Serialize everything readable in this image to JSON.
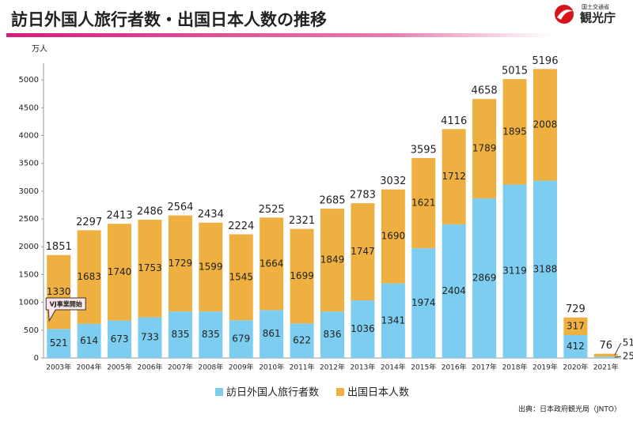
{
  "logo": {
    "ministry": "国土交通省",
    "agency": "観光庁"
  },
  "chart_data": {
    "type": "bar",
    "stacked": true,
    "title": "訪日外国人旅行者数・出国日本人数の推移",
    "y_unit": "万人",
    "categories": [
      "2003年",
      "2004年",
      "2005年",
      "2006年",
      "2007年",
      "2008年",
      "2009年",
      "2010年",
      "2011年",
      "2012年",
      "2013年",
      "2014年",
      "2015年",
      "2016年",
      "2017年",
      "2018年",
      "2019年",
      "2020年",
      "2021年"
    ],
    "series": [
      {
        "name": "訪日外国人旅行者数",
        "color": "#7dcdf0",
        "values": [
          521,
          614,
          673,
          733,
          835,
          835,
          679,
          861,
          622,
          836,
          1036,
          1341,
          1974,
          2404,
          2869,
          3119,
          3188,
          412,
          25
        ]
      },
      {
        "name": "出国日本人数",
        "color": "#efb042",
        "values": [
          1330,
          1683,
          1740,
          1753,
          1729,
          1599,
          1545,
          1664,
          1699,
          1849,
          1747,
          1690,
          1621,
          1712,
          1789,
          1895,
          2008,
          317,
          51
        ]
      }
    ],
    "totals": [
      1851,
      2297,
      2413,
      2486,
      2564,
      2434,
      2224,
      2525,
      2321,
      2685,
      2783,
      3032,
      3595,
      4116,
      4658,
      5015,
      5196,
      729,
      76
    ],
    "ylim": [
      0,
      5300
    ],
    "yticks": [
      0,
      500,
      1000,
      1500,
      2000,
      2500,
      3000,
      3500,
      4000,
      4500,
      5000
    ],
    "grid": false,
    "annotation": "VJ事業開始",
    "source": "出典：日本政府観光局（JNTO）"
  }
}
